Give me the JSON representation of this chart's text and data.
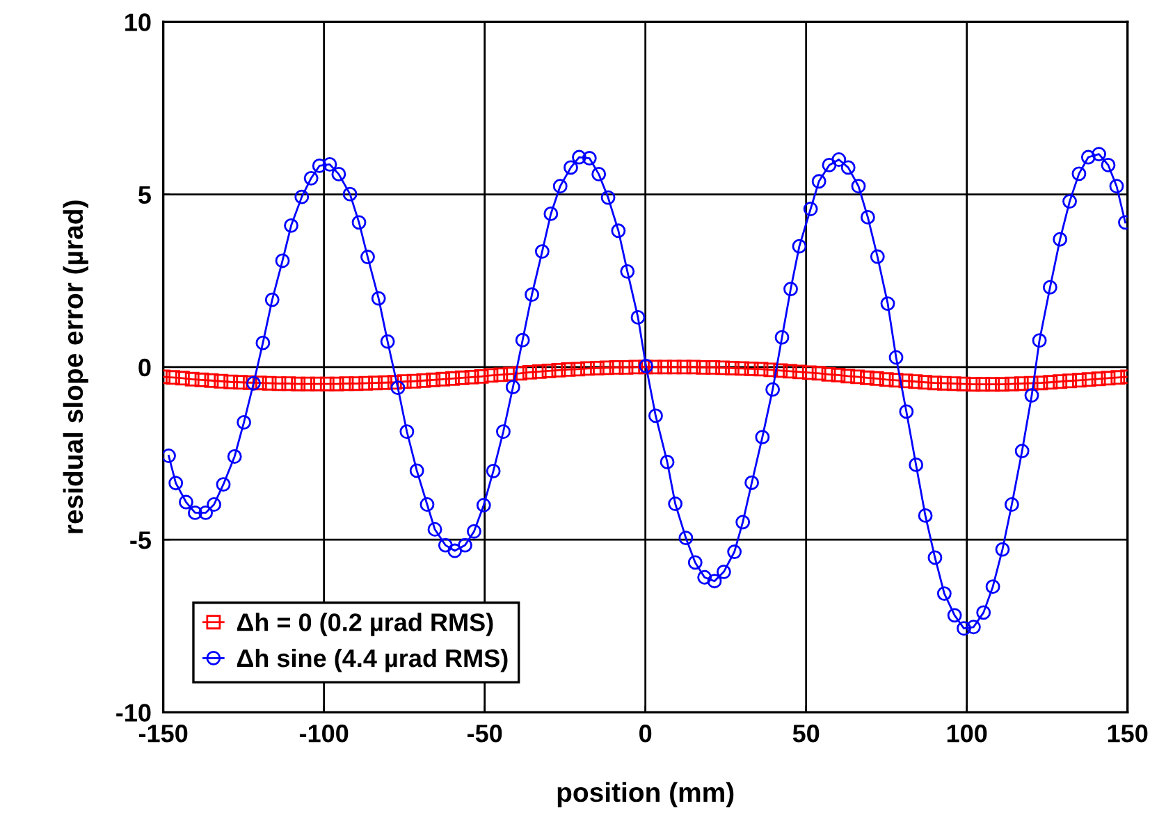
{
  "chart_data": {
    "type": "line",
    "xlabel": "position (mm)",
    "ylabel": "residual slope error (µrad)",
    "xlim": [
      -150,
      150
    ],
    "ylim": [
      -10,
      10
    ],
    "xticks": [
      -150,
      -100,
      -50,
      0,
      50,
      100,
      150
    ],
    "yticks": [
      -10,
      -5,
      0,
      5,
      10
    ],
    "grid": true,
    "legend": "bottom left",
    "series": [
      {
        "name": "Δh = 0 (0.2 µrad RMS)",
        "color": "#ff0000",
        "marker": "square",
        "x": [
          -150,
          -147,
          -144,
          -141,
          -138,
          -135,
          -132,
          -129,
          -126,
          -123,
          -120,
          -117,
          -114,
          -111,
          -108,
          -105,
          -102,
          -99,
          -96,
          -93,
          -90,
          -87,
          -84,
          -81,
          -78,
          -75,
          -72,
          -69,
          -66,
          -63,
          -60,
          -57,
          -54,
          -51,
          -48,
          -45,
          -42,
          -39,
          -36,
          -33,
          -30,
          -27,
          -24,
          -21,
          -18,
          -15,
          -12,
          -9,
          -6,
          -3,
          0,
          3,
          6,
          9,
          12,
          15,
          18,
          21,
          24,
          27,
          30,
          33,
          36,
          39,
          42,
          45,
          48,
          51,
          54,
          57,
          60,
          63,
          66,
          69,
          72,
          75,
          78,
          81,
          84,
          87,
          90,
          93,
          96,
          99,
          102,
          105,
          108,
          111,
          114,
          117,
          120,
          123,
          126,
          129,
          132,
          135,
          138,
          141,
          144,
          147,
          150
        ],
        "values": [
          -0.28,
          -0.3,
          -0.32,
          -0.35,
          -0.37,
          -0.39,
          -0.41,
          -0.43,
          -0.44,
          -0.45,
          -0.46,
          -0.47,
          -0.48,
          -0.48,
          -0.49,
          -0.49,
          -0.49,
          -0.49,
          -0.49,
          -0.48,
          -0.48,
          -0.47,
          -0.46,
          -0.45,
          -0.44,
          -0.42,
          -0.41,
          -0.39,
          -0.37,
          -0.35,
          -0.33,
          -0.31,
          -0.29,
          -0.27,
          -0.24,
          -0.22,
          -0.2,
          -0.18,
          -0.15,
          -0.13,
          -0.11,
          -0.09,
          -0.07,
          -0.06,
          -0.04,
          -0.03,
          -0.02,
          -0.01,
          -0.01,
          0,
          0,
          0,
          0,
          0,
          0,
          0,
          -0.01,
          -0.01,
          -0.02,
          -0.03,
          -0.04,
          -0.05,
          -0.06,
          -0.08,
          -0.1,
          -0.12,
          -0.14,
          -0.16,
          -0.18,
          -0.21,
          -0.23,
          -0.26,
          -0.28,
          -0.31,
          -0.33,
          -0.36,
          -0.38,
          -0.4,
          -0.42,
          -0.44,
          -0.46,
          -0.47,
          -0.48,
          -0.49,
          -0.5,
          -0.5,
          -0.5,
          -0.5,
          -0.49,
          -0.48,
          -0.47,
          -0.46,
          -0.44,
          -0.42,
          -0.4,
          -0.38,
          -0.36,
          -0.34,
          -0.32,
          -0.3,
          -0.28
        ]
      },
      {
        "name": "Δh sine (4.4 µrad RMS)",
        "color": "#0000ff",
        "marker": "circle",
        "x": [
          -148.3,
          -146.1,
          -142.9,
          -140.1,
          -136.8,
          -134.2,
          -131.3,
          -127.8,
          -124.9,
          -121.9,
          -119.0,
          -116.1,
          -112.9,
          -110.2,
          -106.9,
          -104.0,
          -101.4,
          -98.2,
          -95.4,
          -91.9,
          -89.1,
          -86.4,
          -83.0,
          -80.2,
          -77.0,
          -74.2,
          -71.1,
          -67.9,
          -65.5,
          -62.2,
          -59.3,
          -56.1,
          -53.3,
          -50.3,
          -47.3,
          -44.2,
          -41.2,
          -38.2,
          -35.3,
          -32.1,
          -29.4,
          -26.5,
          -23.2,
          -20.6,
          -17.4,
          -14.5,
          -11.6,
          -8.4,
          -5.6,
          -2.3,
          0.2,
          3.2,
          6.8,
          9.3,
          12.6,
          15.5,
          18.4,
          21.5,
          24.4,
          27.7,
          30.3,
          33.1,
          36.4,
          39.6,
          42.5,
          45.2,
          47.9,
          51.4,
          54.0,
          57.2,
          60.2,
          63.1,
          66.3,
          69.2,
          72.2,
          75.4,
          78.0,
          81.2,
          84.2,
          87.1,
          90.1,
          93.0,
          96.2,
          99.1,
          102.1,
          105.2,
          108.1,
          111.1,
          114.0,
          117.2,
          120.2,
          122.6,
          125.9,
          129.0,
          132.0,
          134.9,
          137.8,
          141.1,
          144.0,
          146.6,
          149.3
        ],
        "values": [
          -2.57,
          -3.36,
          -3.91,
          -4.22,
          -4.22,
          -3.98,
          -3.4,
          -2.59,
          -1.6,
          -0.47,
          0.7,
          1.95,
          3.08,
          4.1,
          4.93,
          5.47,
          5.83,
          5.87,
          5.59,
          5.01,
          4.19,
          3.19,
          1.99,
          0.74,
          -0.6,
          -1.87,
          -3.0,
          -3.98,
          -4.7,
          -5.16,
          -5.32,
          -5.16,
          -4.76,
          -4.0,
          -3.01,
          -1.87,
          -0.58,
          0.78,
          2.1,
          3.35,
          4.44,
          5.24,
          5.78,
          6.08,
          6.05,
          5.59,
          4.91,
          3.95,
          2.77,
          1.44,
          0.03,
          -1.41,
          -2.75,
          -3.96,
          -4.95,
          -5.66,
          -6.09,
          -6.2,
          -5.93,
          -5.35,
          -4.49,
          -3.35,
          -2.03,
          -0.65,
          0.86,
          2.26,
          3.5,
          4.58,
          5.38,
          5.85,
          6.01,
          5.78,
          5.24,
          4.34,
          3.2,
          1.84,
          0.28,
          -1.29,
          -2.83,
          -4.3,
          -5.52,
          -6.56,
          -7.19,
          -7.57,
          -7.53,
          -7.11,
          -6.36,
          -5.28,
          -3.98,
          -2.43,
          -0.82,
          0.77,
          2.31,
          3.7,
          4.8,
          5.6,
          6.08,
          6.17,
          5.85,
          5.24,
          4.19
        ]
      }
    ]
  }
}
